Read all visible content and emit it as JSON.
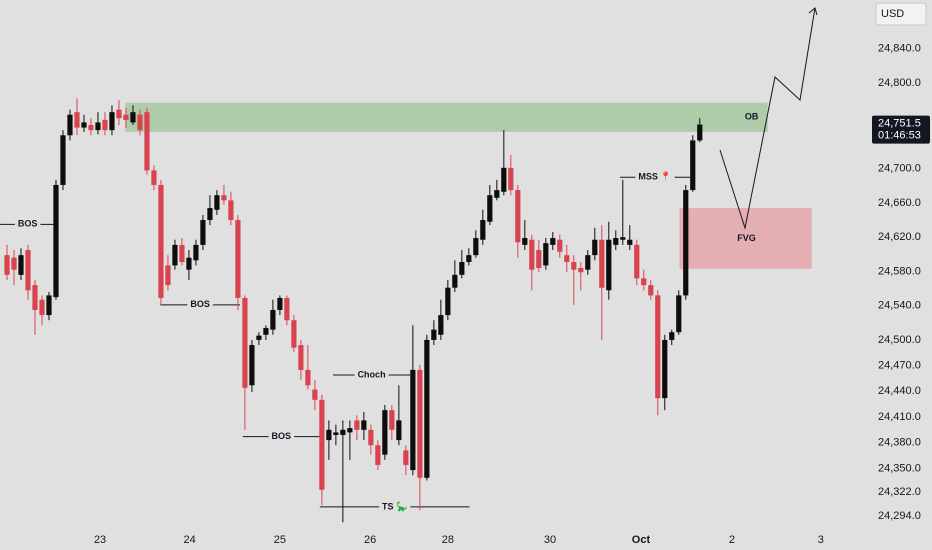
{
  "chart_data": {
    "type": "candlestick",
    "currency": "USD",
    "x": [
      0,
      1,
      2,
      3,
      4,
      5,
      6,
      7,
      8,
      9,
      10,
      11,
      12,
      13,
      14,
      15,
      16,
      17,
      18,
      19,
      20,
      21,
      22,
      23,
      24,
      25,
      26,
      27,
      28,
      29,
      30,
      31,
      32,
      33,
      34,
      35,
      36,
      37,
      38,
      39,
      40,
      41,
      42,
      43,
      44,
      45,
      46,
      47,
      48,
      49,
      50,
      51,
      52,
      53,
      54,
      55,
      56,
      57,
      58,
      59,
      60,
      61,
      62,
      63,
      64,
      65,
      66,
      67,
      68,
      69,
      70,
      71,
      72,
      73,
      74,
      75,
      76,
      77,
      78,
      79,
      80,
      81,
      82,
      83,
      84,
      85,
      86,
      87,
      88,
      89,
      90,
      91,
      92,
      93,
      94,
      95,
      96,
      97,
      98,
      99
    ],
    "open": [
      24599,
      24596,
      24576,
      24605,
      24564,
      24547,
      24529,
      24550,
      24681,
      24739,
      24766,
      24748,
      24751,
      24745,
      24757,
      24745,
      24769,
      24763,
      24754,
      24763,
      24766,
      24698,
      24681,
      24587,
      24587,
      24611,
      24582,
      24593,
      24611,
      24640,
      24652,
      24669,
      24663,
      24640,
      24549,
      24447,
      24500,
      24506,
      24512,
      24535,
      24549,
      24523,
      24494,
      24465,
      24442,
      24430,
      24383,
      24389,
      24389,
      24392,
      24406,
      24395,
      24395,
      24377,
      24366,
      24418,
      24383,
      24371,
      24348,
      24465,
      24339,
      24500,
      24506,
      24529,
      24561,
      24576,
      24591,
      24599,
      24617,
      24638,
      24666,
      24673,
      24701,
      24675,
      24611,
      24617,
      24605,
      24587,
      24611,
      24617,
      24599,
      24591,
      24584,
      24582,
      24599,
      24617,
      24558,
      24611,
      24617,
      24611,
      24611,
      24572,
      24564,
      24552,
      24432,
      24500,
      24509,
      24552,
      24675,
      24733
    ],
    "high": [
      24611,
      24605,
      24607,
      24611,
      24570,
      24552,
      24556,
      24687,
      24745,
      24769,
      24782,
      24763,
      24759,
      24766,
      24766,
      24774,
      24780,
      24771,
      24774,
      24769,
      24771,
      24704,
      24687,
      24599,
      24617,
      24619,
      24605,
      24617,
      24646,
      24669,
      24675,
      24681,
      24673,
      24646,
      24552,
      24500,
      24509,
      24517,
      24547,
      24552,
      24552,
      24529,
      24500,
      24494,
      24453,
      24436,
      24406,
      24401,
      24406,
      24406,
      24412,
      24416,
      24401,
      24383,
      24424,
      24424,
      24447,
      24377,
      24517,
      24471,
      24506,
      24523,
      24547,
      24570,
      24593,
      24605,
      24607,
      24628,
      24652,
      24681,
      24687,
      24745,
      24716,
      24681,
      24640,
      24623,
      24617,
      24619,
      24626,
      24623,
      24611,
      24599,
      24591,
      24605,
      24631,
      24634,
      24638,
      24628,
      24687,
      24634,
      24617,
      24582,
      24570,
      24558,
      24506,
      24512,
      24558,
      24681,
      24739,
      24759
    ],
    "low": [
      24570,
      24564,
      24570,
      24547,
      24506,
      24517,
      24523,
      24547,
      24675,
      24733,
      24739,
      24743,
      24739,
      24740,
      24739,
      24739,
      24751,
      24748,
      24751,
      24739,
      24693,
      24675,
      24541,
      24558,
      24582,
      24587,
      24570,
      24587,
      24605,
      24634,
      24646,
      24658,
      24634,
      24535,
      24395,
      24439,
      24494,
      24500,
      24506,
      24529,
      24517,
      24486,
      24453,
      24442,
      24418,
      24307,
      24360,
      24377,
      24287,
      24360,
      24383,
      24383,
      24366,
      24348,
      24360,
      24383,
      24377,
      24342,
      24342,
      24301,
      24336,
      24494,
      24500,
      24523,
      24556,
      24572,
      24587,
      24596,
      24611,
      24634,
      24663,
      24669,
      24669,
      24596,
      24605,
      24558,
      24579,
      24582,
      24605,
      24596,
      24579,
      24541,
      24558,
      24576,
      24593,
      24500,
      24547,
      24605,
      24611,
      24605,
      24564,
      24558,
      24547,
      24412,
      24418,
      24494,
      24506,
      24547,
      24673,
      24731
    ],
    "close": [
      24576,
      24582,
      24599,
      24558,
      24535,
      24529,
      24552,
      24681,
      24739,
      24763,
      24748,
      24754,
      24745,
      24754,
      24745,
      24766,
      24759,
      24757,
      24766,
      24745,
      24698,
      24681,
      24549,
      24564,
      24611,
      24591,
      24596,
      24611,
      24640,
      24654,
      24669,
      24663,
      24640,
      24549,
      24444,
      24494,
      24505,
      24514,
      24535,
      24549,
      24523,
      24491,
      24465,
      24447,
      24430,
      24325,
      24395,
      24392,
      24395,
      24397,
      24395,
      24406,
      24377,
      24354,
      24418,
      24395,
      24406,
      24354,
      24465,
      24339,
      24500,
      24512,
      24529,
      24561,
      24576,
      24591,
      24599,
      24619,
      24640,
      24669,
      24675,
      24701,
      24675,
      24614,
      24619,
      24582,
      24584,
      24613,
      24619,
      24603,
      24591,
      24582,
      24579,
      24599,
      24617,
      24561,
      24617,
      24619,
      24620,
      24617,
      24572,
      24564,
      24552,
      24432,
      24500,
      24509,
      24552,
      24675,
      24733,
      24751.5
    ],
    "up_color": "#0d0d0d",
    "down_color": "#d9434f",
    "xlim": [
      -1,
      121.9
    ],
    "ylim": [
      24278,
      24897
    ],
    "xticks": [
      {
        "value": 13.3,
        "label": "23"
      },
      {
        "value": 26.1,
        "label": "24"
      },
      {
        "value": 39,
        "label": "25"
      },
      {
        "value": 51.9,
        "label": "26"
      },
      {
        "value": 63,
        "label": "28"
      },
      {
        "value": 77.6,
        "label": "30"
      },
      {
        "value": 90.6,
        "label": "Oct"
      },
      {
        "value": 103.6,
        "label": "2"
      },
      {
        "value": 116.3,
        "label": "3"
      }
    ],
    "yticks": [
      {
        "value": 24840,
        "label": "24,840.0"
      },
      {
        "value": 24800,
        "label": "24,800.0"
      },
      {
        "value": 24700,
        "label": "24,700.0"
      },
      {
        "value": 24660,
        "label": "24,660.0"
      },
      {
        "value": 24620,
        "label": "24,620.0"
      },
      {
        "value": 24580,
        "label": "24,580.0"
      },
      {
        "value": 24540,
        "label": "24,540.0"
      },
      {
        "value": 24500,
        "label": "24,500.0"
      },
      {
        "value": 24470,
        "label": "24,470.0"
      },
      {
        "value": 24440,
        "label": "24,440.0"
      },
      {
        "value": 24410,
        "label": "24,410.0"
      },
      {
        "value": 24380,
        "label": "24,380.0"
      },
      {
        "value": 24350,
        "label": "24,350.0"
      },
      {
        "value": 24322,
        "label": "24,322.0"
      },
      {
        "value": 24294,
        "label": "24,294.0"
      }
    ],
    "grid": false,
    "price_tag": {
      "value": 24751.5,
      "label": "24,751.5"
    },
    "countdown": "01:46:53",
    "zones": [
      {
        "label": "OB",
        "color": "#a9c9a4",
        "x": [
          16.9,
          108.7
        ],
        "y": [
          24743,
          24777
        ]
      },
      {
        "label": "FVG",
        "color": "#e4a9ad",
        "x": [
          96.1,
          115
        ],
        "y": [
          24583,
          24654
        ]
      }
    ],
    "levels": [
      {
        "label": "BOS",
        "price": 24635,
        "x": [
          -1,
          6.9
        ]
      },
      {
        "label": "BOS",
        "price": 24541,
        "x": [
          21.9,
          33.3
        ]
      },
      {
        "label": "BOS",
        "price": 24387,
        "x": [
          33.7,
          44.7
        ]
      },
      {
        "label": "Choch",
        "price": 24459,
        "x": [
          46.6,
          57.6
        ]
      },
      {
        "label": "MSS 📍",
        "price": 24690,
        "x": [
          87.6,
          97.6
        ]
      },
      {
        "label": "TS 🦕",
        "price": 24305,
        "x": [
          44.7,
          66.1
        ]
      }
    ]
  }
}
